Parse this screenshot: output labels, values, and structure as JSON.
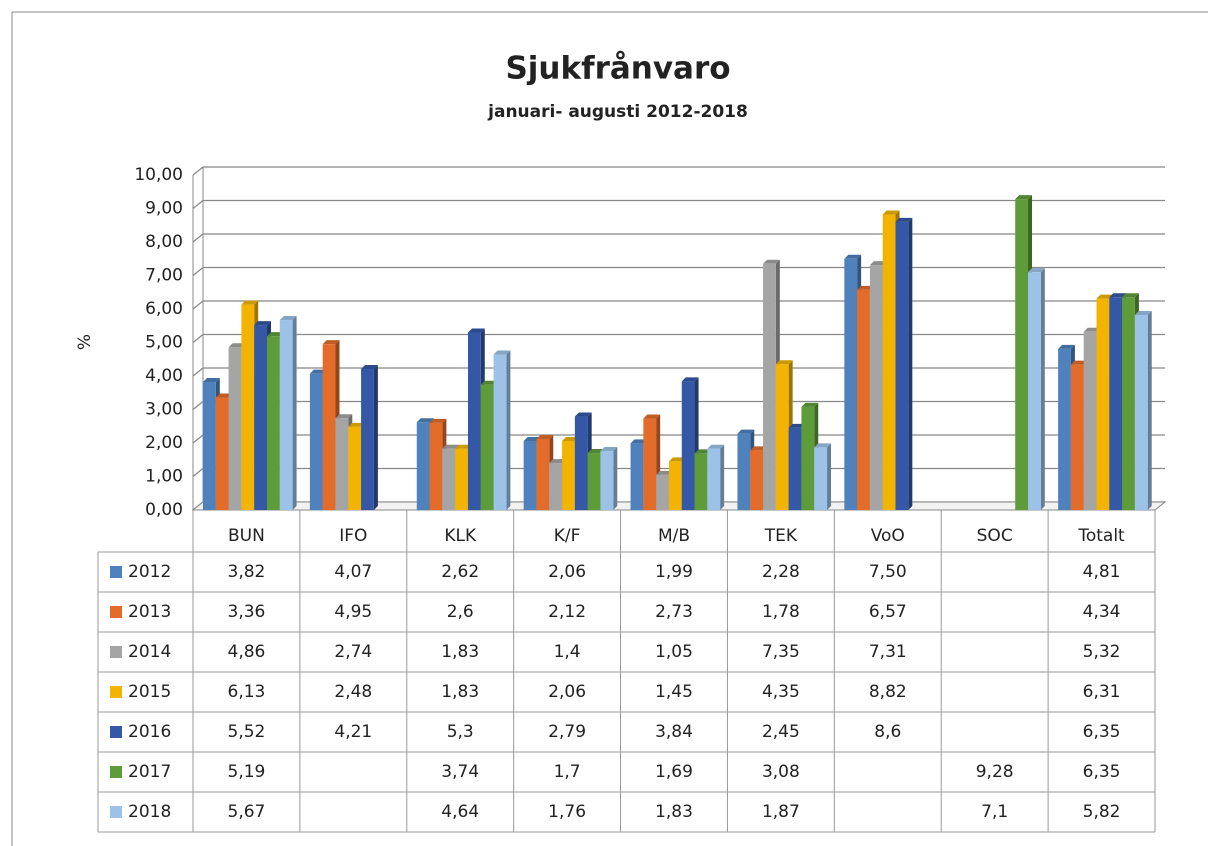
{
  "chart_data": {
    "type": "bar",
    "title": "Sjukfrånvaro",
    "subtitle": "januari- augusti 2012-2018",
    "y_label": "%",
    "categories": [
      "BUN",
      "IFO",
      "KLK",
      "K/F",
      "M/B",
      "TEK",
      "VoO",
      "SOC",
      "Totalt"
    ],
    "series": [
      {
        "name": "2012",
        "color": "#4f81bd",
        "values": [
          3.82,
          4.07,
          2.62,
          2.06,
          1.99,
          2.28,
          7.5,
          null,
          4.81
        ],
        "value_labels": [
          "3,82",
          "4,07",
          "2,62",
          "2,06",
          "1,99",
          "2,28",
          "7,50",
          null,
          "4,81"
        ]
      },
      {
        "name": "2013",
        "color": "#e36c2b",
        "values": [
          3.36,
          4.95,
          2.6,
          2.12,
          2.73,
          1.78,
          6.57,
          null,
          4.34
        ],
        "value_labels": [
          "3,36",
          "4,95",
          "2,6",
          "2,12",
          "2,73",
          "1,78",
          "6,57",
          null,
          "4,34"
        ]
      },
      {
        "name": "2014",
        "color": "#a5a5a5",
        "values": [
          4.86,
          2.74,
          1.83,
          1.4,
          1.05,
          7.35,
          7.31,
          null,
          5.32
        ],
        "value_labels": [
          "4,86",
          "2,74",
          "1,83",
          "1,4",
          "1,05",
          "7,35",
          "7,31",
          null,
          "5,32"
        ]
      },
      {
        "name": "2015",
        "color": "#f2b400",
        "values": [
          6.13,
          2.48,
          1.83,
          2.06,
          1.45,
          4.35,
          8.82,
          null,
          6.31
        ],
        "value_labels": [
          "6,13",
          "2,48",
          "1,83",
          "2,06",
          "1,45",
          "4,35",
          "8,82",
          null,
          "6,31"
        ]
      },
      {
        "name": "2016",
        "color": "#3458a6",
        "values": [
          5.52,
          4.21,
          5.3,
          2.79,
          3.84,
          2.45,
          8.6,
          null,
          6.35
        ],
        "value_labels": [
          "5,52",
          "4,21",
          "5,3",
          "2,79",
          "3,84",
          "2,45",
          "8,6",
          null,
          "6,35"
        ]
      },
      {
        "name": "2017",
        "color": "#5e9c3a",
        "values": [
          5.19,
          null,
          3.74,
          1.7,
          1.69,
          3.08,
          null,
          9.28,
          6.35
        ],
        "value_labels": [
          "5,19",
          null,
          "3,74",
          "1,7",
          "1,69",
          "3,08",
          null,
          "9,28",
          "6,35"
        ]
      },
      {
        "name": "2018",
        "color": "#9cc2e8",
        "values": [
          5.67,
          null,
          4.64,
          1.76,
          1.83,
          1.87,
          null,
          7.1,
          5.82
        ],
        "value_labels": [
          "5,67",
          null,
          "4,64",
          "1,76",
          "1,83",
          "1,87",
          null,
          "7,1",
          "5,82"
        ]
      }
    ],
    "ylim": [
      0,
      10
    ],
    "yticks": [
      {
        "value": 0,
        "label": "0,00"
      },
      {
        "value": 1,
        "label": "1,00"
      },
      {
        "value": 2,
        "label": "2,00"
      },
      {
        "value": 3,
        "label": "3,00"
      },
      {
        "value": 4,
        "label": "4,00"
      },
      {
        "value": 5,
        "label": "5,00"
      },
      {
        "value": 6,
        "label": "6,00"
      },
      {
        "value": 7,
        "label": "7,00"
      },
      {
        "value": 8,
        "label": "8,00"
      },
      {
        "value": 9,
        "label": "9,00"
      },
      {
        "value": 10,
        "label": "10,00"
      }
    ],
    "grid": true
  }
}
